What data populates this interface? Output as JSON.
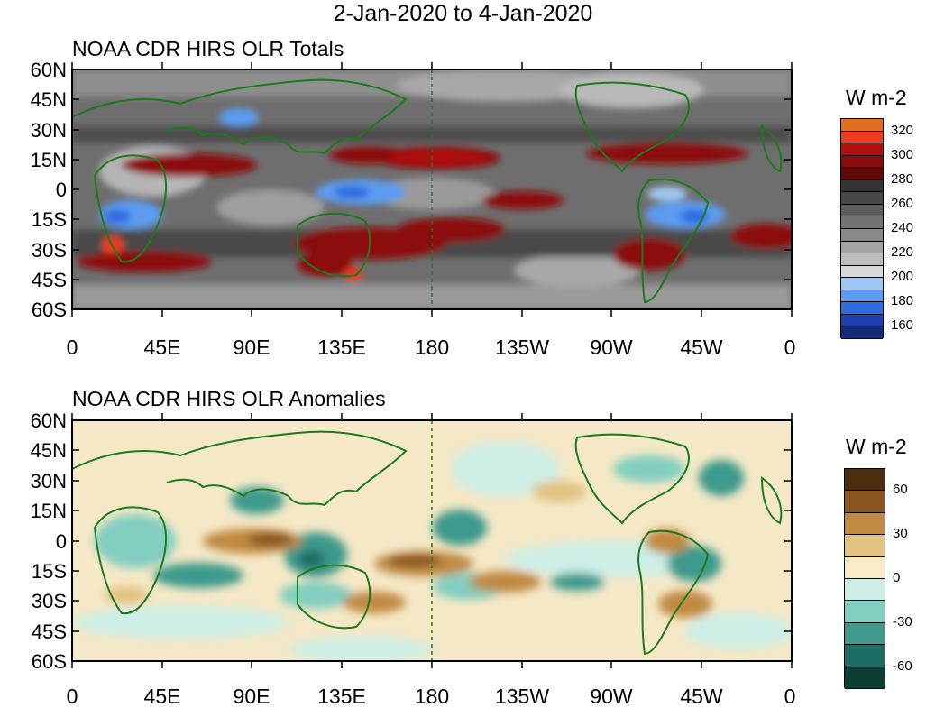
{
  "main_title": "2-Jan-2020 to 4-Jan-2020",
  "colors": {
    "land_outline": "#1e7a1e",
    "dateline": "#1e7a1e"
  },
  "lat_labels": [
    "60N",
    "45N",
    "30N",
    "15N",
    "0",
    "15S",
    "30S",
    "45S",
    "60S"
  ],
  "lon_labels": [
    "0",
    "45E",
    "90E",
    "135E",
    "180",
    "135W",
    "90W",
    "45W",
    "0"
  ],
  "totals": {
    "title": "NOAA CDR HIRS OLR Totals",
    "legend": {
      "units": "W m-2",
      "ticks": [
        "320",
        "300",
        "280",
        "260",
        "240",
        "220",
        "200",
        "180",
        "160"
      ],
      "colors": [
        "#e0701f",
        "#ef3b1f",
        "#b0100e",
        "#8b0a0a",
        "#5e0808",
        "#333333",
        "#474747",
        "#5c5c5c",
        "#727272",
        "#898989",
        "#a3a3a3",
        "#bdbdbd",
        "#d7d7d7",
        "#9fc6f0",
        "#5c9cf0",
        "#2f6ce0",
        "#1d3fb0",
        "#132a78"
      ]
    }
  },
  "anomalies": {
    "title": "NOAA CDR HIRS OLR Anomalies",
    "legend": {
      "units": "W m-2",
      "ticks": [
        "60",
        "30",
        "0",
        "-30",
        "-60"
      ],
      "colors": [
        "#4a2d0f",
        "#8a5420",
        "#c08a42",
        "#e2c382",
        "#f7ebc8",
        "#cdeee6",
        "#82cec0",
        "#3e9a8c",
        "#1a6d63",
        "#0c3e34"
      ]
    }
  }
}
